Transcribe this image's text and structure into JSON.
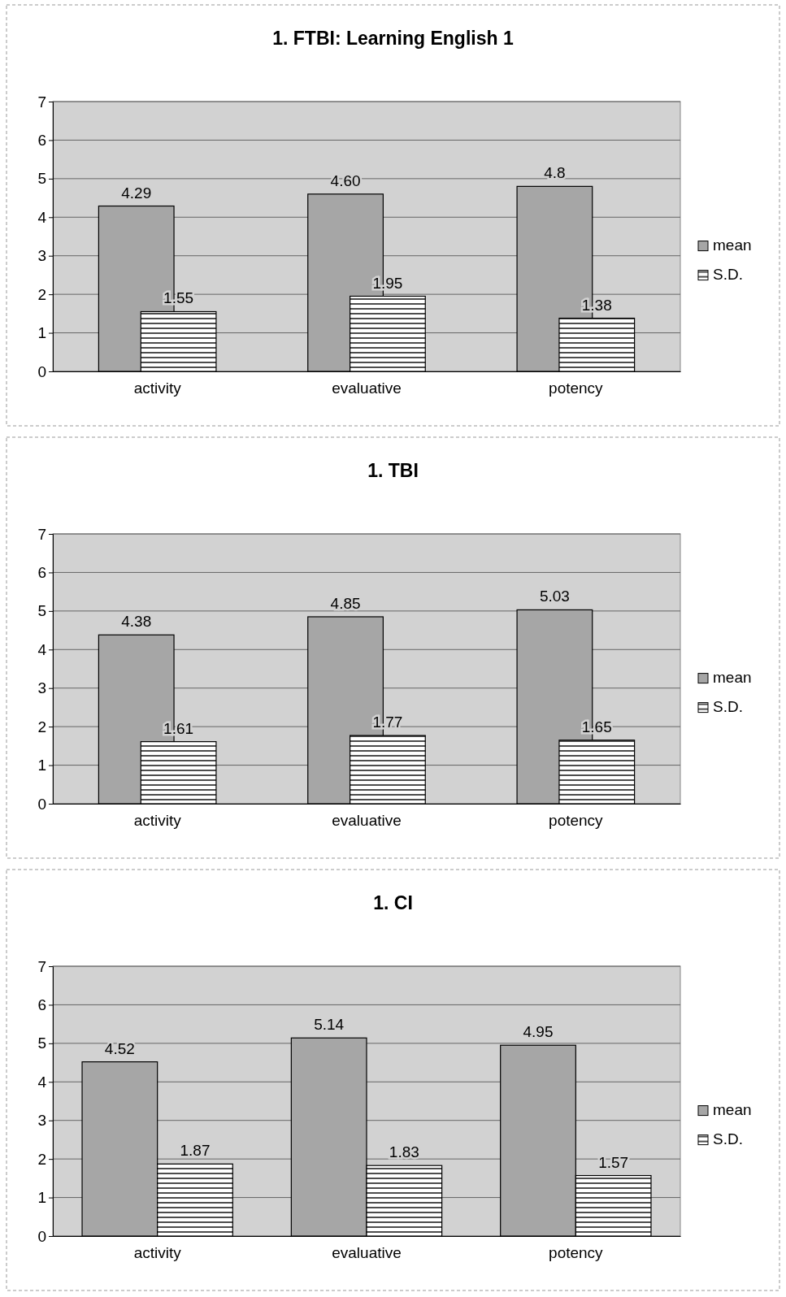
{
  "chart_data": [
    {
      "type": "bar",
      "title": "1. FTBI: Learning English 1",
      "categories": [
        "activity",
        "evaluative",
        "potency"
      ],
      "series": [
        {
          "name": "mean",
          "color": "#a6a6a6",
          "values": [
            4.29,
            4.6,
            4.8
          ],
          "value_labels": [
            "4.29",
            "4.60",
            "4.8"
          ]
        },
        {
          "name": "S.D.",
          "color": "#000000",
          "values": [
            1.55,
            1.95,
            1.38
          ],
          "value_labels": [
            "1.55",
            "1.95",
            "1.38"
          ]
        }
      ],
      "ylim": [
        0,
        7
      ],
      "yticks": [
        0,
        1,
        2,
        3,
        4,
        5,
        6,
        7
      ],
      "grid": "y",
      "legend": "right"
    },
    {
      "type": "bar",
      "title": "1. TBI",
      "categories": [
        "activity",
        "evaluative",
        "potency"
      ],
      "series": [
        {
          "name": "mean",
          "color": "#a6a6a6",
          "values": [
            4.38,
            4.85,
            5.03
          ],
          "value_labels": [
            "4.38",
            "4.85",
            "5.03"
          ]
        },
        {
          "name": "S.D.",
          "color": "#000000",
          "values": [
            1.61,
            1.77,
            1.65
          ],
          "value_labels": [
            "1.61",
            "1.77",
            "1.65"
          ]
        }
      ],
      "ylim": [
        0,
        7
      ],
      "yticks": [
        0,
        1,
        2,
        3,
        4,
        5,
        6,
        7
      ],
      "grid": "y",
      "legend": "right"
    },
    {
      "type": "bar",
      "title": "1. CI",
      "categories": [
        "activity",
        "evaluative",
        "potency"
      ],
      "series": [
        {
          "name": "mean",
          "color": "#a6a6a6",
          "values": [
            4.52,
            5.14,
            4.95
          ],
          "value_labels": [
            "4.52",
            "5.14",
            "4.95"
          ]
        },
        {
          "name": "S.D.",
          "color": "#000000",
          "values": [
            1.87,
            1.83,
            1.57
          ],
          "value_labels": [
            "1.87",
            "1.83",
            "1.57"
          ]
        }
      ],
      "ylim": [
        0,
        7
      ],
      "yticks": [
        0,
        1,
        2,
        3,
        4,
        5,
        6,
        7
      ],
      "grid": "y",
      "legend": "right"
    }
  ]
}
